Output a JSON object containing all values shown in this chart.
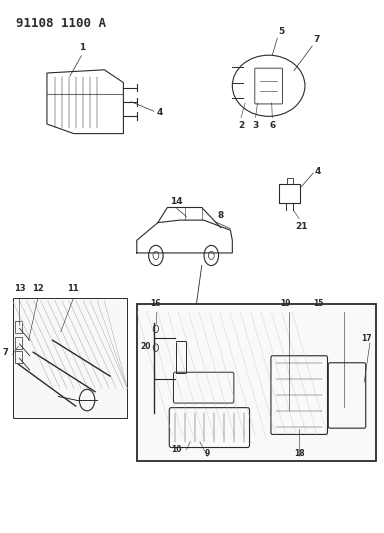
{
  "title": "91108 1100 A",
  "bg_color": "#ffffff",
  "line_color": "#2a2a2a",
  "title_fontsize": 9,
  "title_fontweight": "bold"
}
